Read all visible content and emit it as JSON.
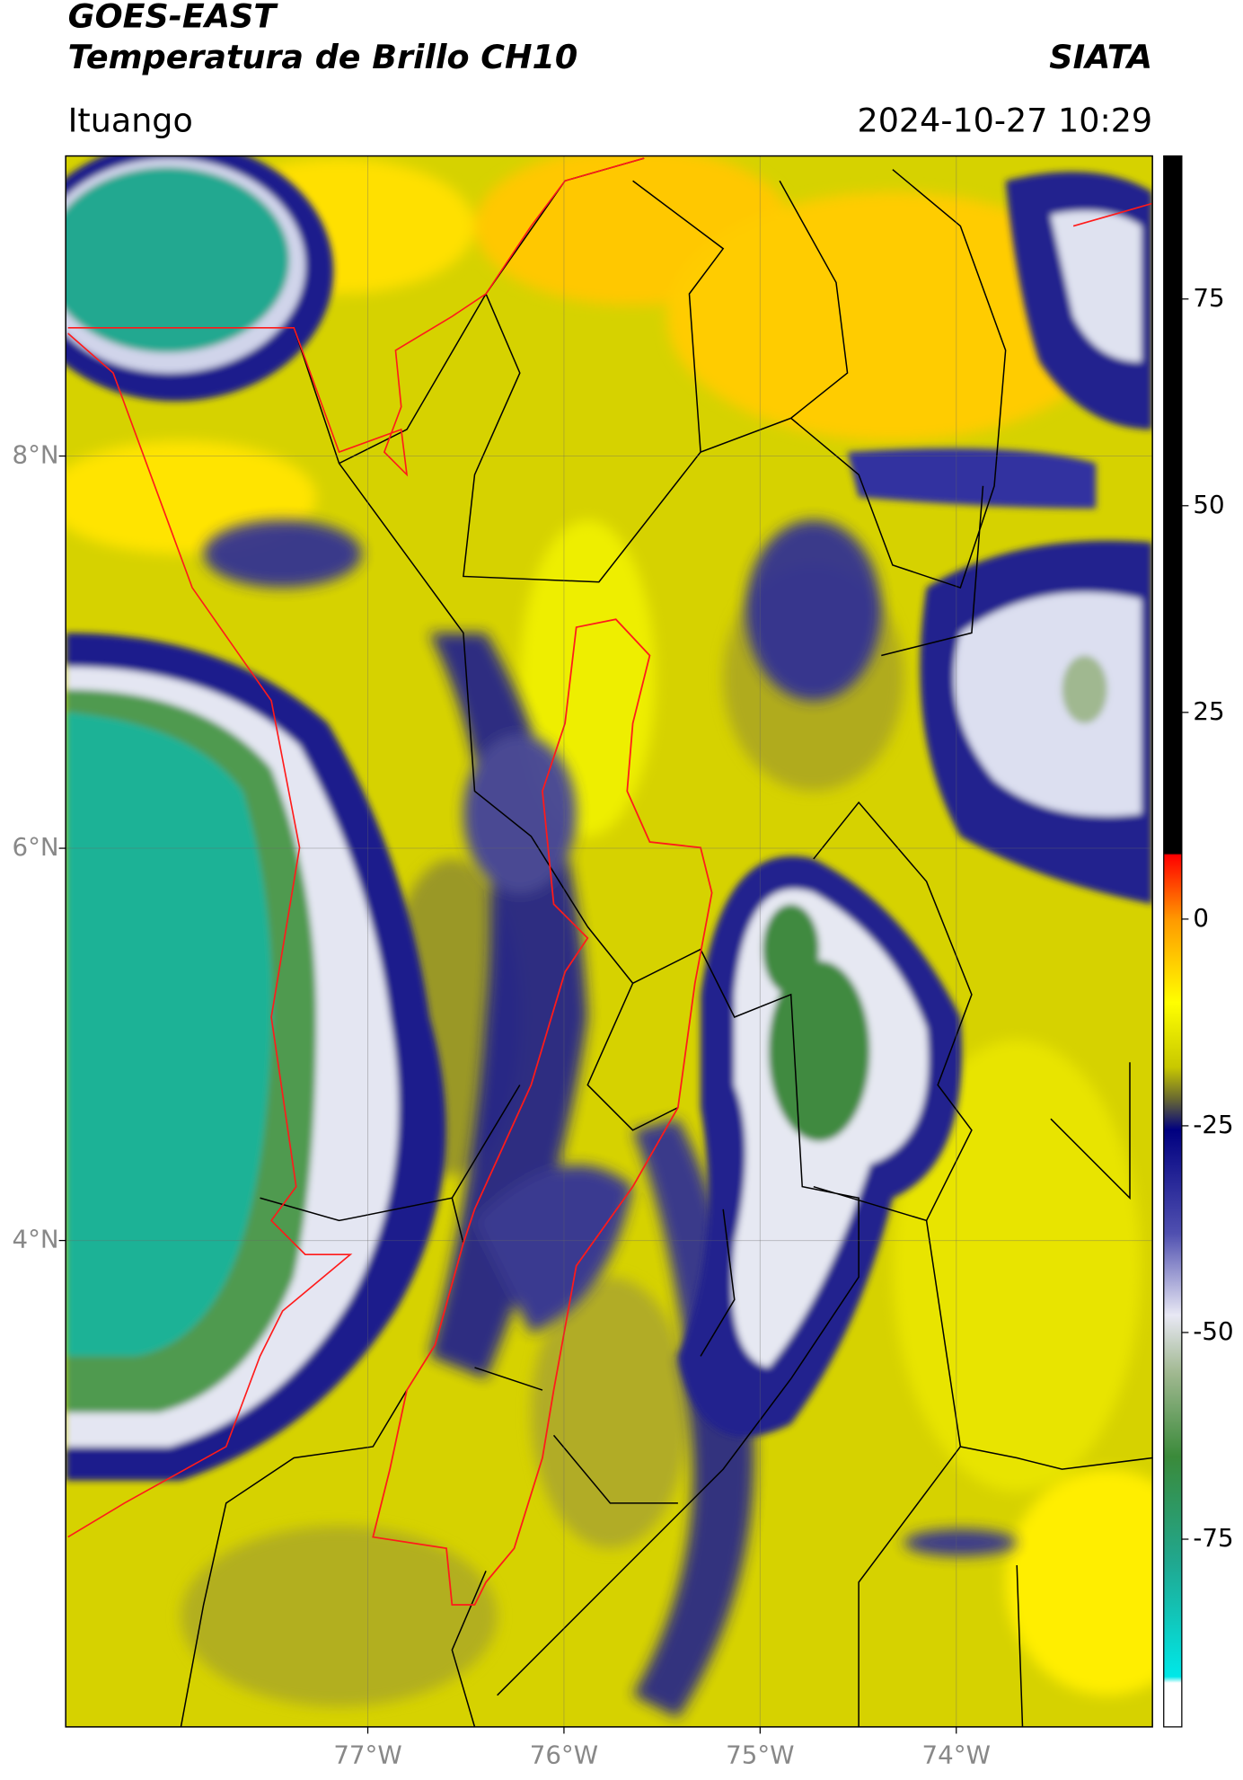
{
  "chart_data": {
    "type": "map",
    "title": "GOES-EAST",
    "subtitle": "Temperatura de Brillo CH10",
    "credit": "SIATA",
    "location": "Ituango",
    "timestamp": "2024-10-27 10:29",
    "xlim": [
      -78.54,
      -73.0
    ],
    "ylim": [
      1.52,
      9.53
    ],
    "xticks": [
      {
        "value": -77,
        "label": "77°W"
      },
      {
        "value": -76,
        "label": "76°W"
      },
      {
        "value": -75,
        "label": "75°W"
      },
      {
        "value": -74,
        "label": "74°W"
      }
    ],
    "yticks": [
      {
        "value": 8,
        "label": "8°N"
      },
      {
        "value": 6,
        "label": "6°N"
      },
      {
        "value": 4,
        "label": "4°N"
      }
    ],
    "grid": true,
    "colorbar": {
      "lim": [
        -97.7,
        92.3
      ],
      "ticks": [
        -75,
        -50,
        -25,
        0,
        25,
        50,
        75
      ]
    }
  }
}
